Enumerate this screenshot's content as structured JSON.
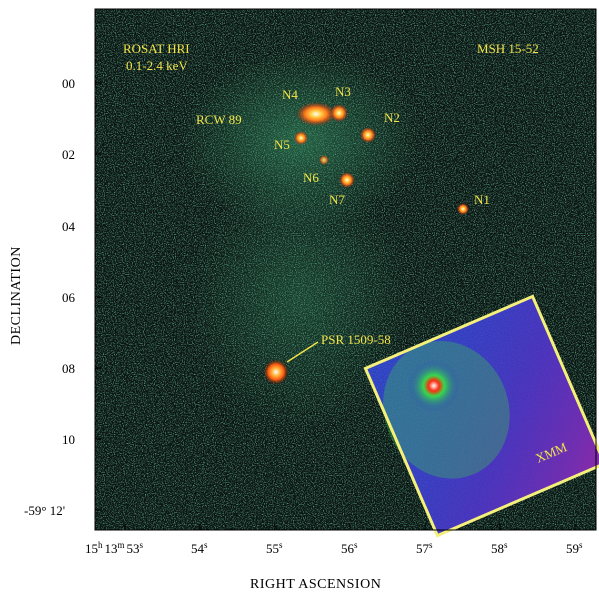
{
  "annotations": {
    "instrument": "ROSAT HRI",
    "energy_band": "0.1-2.4 keV",
    "object": "MSH 15-52",
    "nebula": "RCW 89",
    "knots": [
      "N1",
      "N2",
      "N3",
      "N4",
      "N5",
      "N6",
      "N7"
    ],
    "pulsar": "PSR 1509-58",
    "inset": "XMM"
  },
  "axes": {
    "x_title": "RIGHT ASCENSION",
    "y_title": "DECLINATION",
    "ra_ticks": [
      {
        "major": "15",
        "sup": "h",
        "minor": "13",
        "sup2": "m",
        "sec": "53",
        "sup3": "s"
      },
      {
        "sec": "54",
        "sup": "s"
      },
      {
        "sec": "55",
        "sup": "s"
      },
      {
        "sec": "56",
        "sup": "s"
      },
      {
        "sec": "57",
        "sup": "s"
      },
      {
        "sec": "58",
        "sup": "s"
      },
      {
        "sec": "59",
        "sup": "s"
      }
    ],
    "dec_ticks": [
      "00",
      "02",
      "04",
      "06",
      "08",
      "10",
      "-59° 12'"
    ]
  },
  "colors": {
    "background": "#0b1410",
    "noise": "#1f5a44",
    "label": "#f2e64a",
    "inset_frame": "#f4f07a",
    "inset_bg": "#2a3fc0",
    "inset_purple": "#7a2aa8",
    "source": "#ff8a1a"
  }
}
